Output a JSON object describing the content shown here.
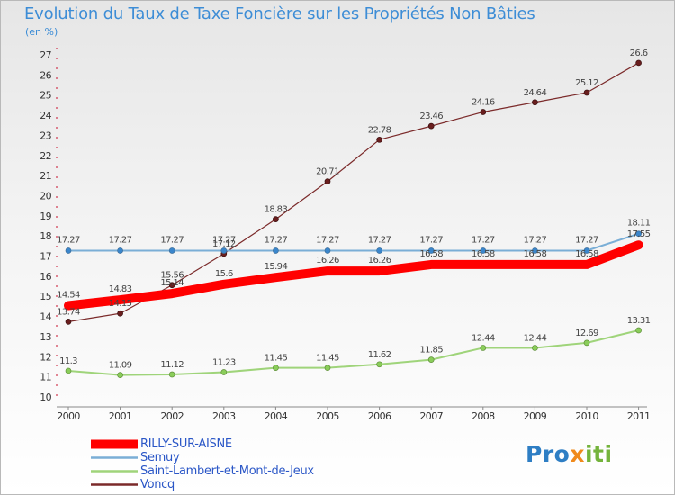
{
  "chart_data": {
    "type": "line",
    "title": "Evolution du Taux de Taxe Foncière sur les Propriétés Non Bâties",
    "ylabel": "(en %)",
    "xlabel": "",
    "ylim": [
      10,
      27
    ],
    "yticks": [
      "10",
      "11",
      "12",
      "13",
      "14",
      "15",
      "16",
      "17",
      "18",
      "19",
      "20",
      "21",
      "22",
      "23",
      "24",
      "25",
      "26",
      "27"
    ],
    "categories": [
      "2000",
      "2001",
      "2002",
      "2003",
      "2004",
      "2005",
      "2006",
      "2007",
      "2008",
      "2009",
      "2010",
      "2011"
    ],
    "grid": false,
    "legend": "bottom-left",
    "series": [
      {
        "name": "RILLY-SUR-AISNE",
        "color": "#ff0000",
        "values": [
          14.54,
          14.83,
          15.14,
          15.6,
          15.94,
          16.26,
          16.26,
          16.58,
          16.58,
          16.58,
          16.58,
          17.55
        ],
        "labels": [
          "14.54",
          "14.83",
          "15.14",
          "15.6",
          "15.94",
          "16.26",
          "16.26",
          "16.58",
          "16.58",
          "16.58",
          "16.58",
          "17.55"
        ]
      },
      {
        "name": "Semuy",
        "color": "#7aaed6",
        "values": [
          17.27,
          17.27,
          17.27,
          17.27,
          17.27,
          17.27,
          17.27,
          17.27,
          17.27,
          17.27,
          17.27,
          18.11
        ],
        "labels": [
          "17.27",
          "17.27",
          "17.27",
          "17.27",
          "17.27",
          "17.27",
          "17.27",
          "17.27",
          "17.27",
          "17.27",
          "17.27",
          "18.11"
        ]
      },
      {
        "name": "Saint-Lambert-et-Mont-de-Jeux",
        "color": "#9fd47a",
        "values": [
          11.3,
          11.09,
          11.12,
          11.23,
          11.45,
          11.45,
          11.62,
          11.85,
          12.44,
          12.44,
          12.69,
          13.31
        ],
        "labels": [
          "11.3",
          "11.09",
          "11.12",
          "11.23",
          "11.45",
          "11.45",
          "11.62",
          "11.85",
          "12.44",
          "12.44",
          "12.69",
          "13.31"
        ]
      },
      {
        "name": "Voncq",
        "color": "#7b2a2a",
        "values": [
          13.74,
          14.15,
          15.56,
          17.12,
          18.83,
          20.71,
          22.78,
          23.46,
          24.16,
          24.64,
          25.12,
          26.6
        ],
        "labels": [
          "13.74",
          "14.15",
          "15.56",
          "17.12",
          "18.83",
          "20.71",
          "22.78",
          "23.46",
          "24.16",
          "24.64",
          "25.12",
          "26.6"
        ]
      }
    ]
  },
  "logo": {
    "part1": "Pro",
    "part2": "x",
    "part3": "iti"
  }
}
